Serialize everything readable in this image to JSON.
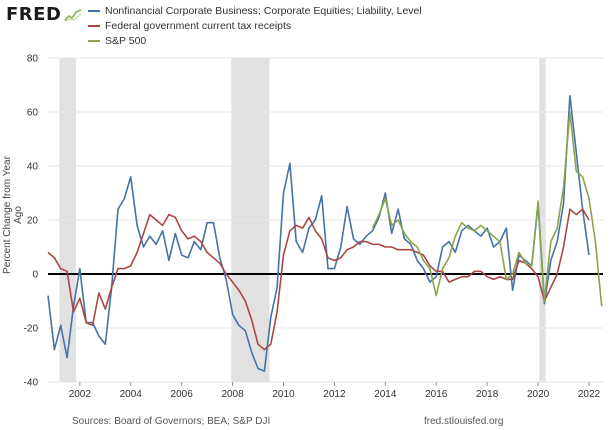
{
  "header": {
    "logo_text": "FRED",
    "logo_icon": "fred-chart-icon"
  },
  "chart_data": {
    "type": "line",
    "title": "",
    "xlabel": "",
    "ylabel": "Percent Change from Year Ago",
    "xlim": [
      2000.75,
      2022.55
    ],
    "ylim": [
      -40,
      80
    ],
    "y_ticks": [
      -40,
      -20,
      0,
      20,
      40,
      60,
      80
    ],
    "x_ticks": [
      2002,
      2004,
      2006,
      2008,
      2010,
      2012,
      2014,
      2016,
      2018,
      2020,
      2022
    ],
    "grid": true,
    "zero_line": true,
    "legend_position": "top-left",
    "recession_bands": [
      [
        2001.2,
        2001.85
      ],
      [
        2007.95,
        2009.45
      ],
      [
        2020.05,
        2020.3
      ]
    ],
    "colors": {
      "grid": "#e6e6e6",
      "recession": "#e1e1e1",
      "axis_text": "#333333",
      "zero_line": "#000000"
    },
    "series": [
      {
        "name": "Nonfinancial Corporate Business; Corporate Equities; Liability, Level",
        "color": "#4572a7",
        "x": [
          2000.75,
          2001.0,
          2001.25,
          2001.5,
          2001.75,
          2002.0,
          2002.25,
          2002.5,
          2002.75,
          2003.0,
          2003.25,
          2003.5,
          2003.75,
          2004.0,
          2004.25,
          2004.5,
          2004.75,
          2005.0,
          2005.25,
          2005.5,
          2005.75,
          2006.0,
          2006.25,
          2006.5,
          2006.75,
          2007.0,
          2007.25,
          2007.5,
          2007.75,
          2008.0,
          2008.25,
          2008.5,
          2008.75,
          2009.0,
          2009.25,
          2009.5,
          2009.75,
          2010.0,
          2010.25,
          2010.5,
          2010.75,
          2011.0,
          2011.25,
          2011.5,
          2011.75,
          2012.0,
          2012.25,
          2012.5,
          2012.75,
          2013.0,
          2013.25,
          2013.5,
          2013.75,
          2014.0,
          2014.25,
          2014.5,
          2014.75,
          2015.0,
          2015.25,
          2015.5,
          2015.75,
          2016.0,
          2016.25,
          2016.5,
          2016.75,
          2017.0,
          2017.25,
          2017.5,
          2017.75,
          2018.0,
          2018.25,
          2018.5,
          2018.75,
          2019.0,
          2019.25,
          2019.5,
          2019.75,
          2020.0,
          2020.25,
          2020.5,
          2020.75,
          2021.0,
          2021.25,
          2021.5,
          2021.75,
          2022.0
        ],
        "values": [
          -8,
          -28,
          -19,
          -31,
          -12,
          2,
          -18,
          -18,
          -23,
          -26,
          -5,
          24,
          28,
          36,
          18,
          10,
          14,
          11,
          16,
          5,
          15,
          7,
          6,
          12,
          9,
          19,
          19,
          6,
          -2,
          -15,
          -19,
          -21,
          -29,
          -35,
          -36,
          -16,
          -5,
          30,
          41,
          12,
          8,
          17,
          20,
          29,
          2,
          2,
          10,
          25,
          13,
          11,
          14,
          16,
          21,
          30,
          15,
          24,
          13,
          11,
          5,
          2,
          -3,
          -1,
          10,
          12,
          8,
          16,
          18,
          16,
          14,
          17,
          10,
          12,
          17,
          -6,
          7,
          5,
          3,
          26,
          -11,
          5,
          12,
          26,
          66,
          45,
          24,
          7
        ]
      },
      {
        "name": "Federal government current tax receipts",
        "color": "#aa4643",
        "x": [
          2000.75,
          2001.0,
          2001.25,
          2001.5,
          2001.75,
          2002.0,
          2002.25,
          2002.5,
          2002.75,
          2003.0,
          2003.25,
          2003.5,
          2003.75,
          2004.0,
          2004.25,
          2004.5,
          2004.75,
          2005.0,
          2005.25,
          2005.5,
          2005.75,
          2006.0,
          2006.25,
          2006.5,
          2006.75,
          2007.0,
          2007.25,
          2007.5,
          2007.75,
          2008.0,
          2008.25,
          2008.5,
          2008.75,
          2009.0,
          2009.25,
          2009.5,
          2009.75,
          2010.0,
          2010.25,
          2010.5,
          2010.75,
          2011.0,
          2011.25,
          2011.5,
          2011.75,
          2012.0,
          2012.25,
          2012.5,
          2012.75,
          2013.0,
          2013.25,
          2013.5,
          2013.75,
          2014.0,
          2014.25,
          2014.5,
          2014.75,
          2015.0,
          2015.25,
          2015.5,
          2015.75,
          2016.0,
          2016.25,
          2016.5,
          2016.75,
          2017.0,
          2017.25,
          2017.5,
          2017.75,
          2018.0,
          2018.25,
          2018.5,
          2018.75,
          2019.0,
          2019.25,
          2019.5,
          2019.75,
          2020.0,
          2020.25,
          2020.5,
          2020.75,
          2021.0,
          2021.25,
          2021.5,
          2021.75,
          2022.0
        ],
        "values": [
          8,
          6,
          2,
          1,
          -14,
          -9,
          -18,
          -19,
          -7,
          -13,
          -5,
          2,
          2,
          3,
          8,
          15,
          22,
          20,
          18,
          22,
          21,
          16,
          13,
          14,
          12,
          8,
          6,
          4,
          0,
          -3,
          -6,
          -10,
          -17,
          -26,
          -28,
          -26,
          -14,
          7,
          16,
          18,
          17,
          21,
          16,
          13,
          6,
          5,
          6,
          9,
          10,
          12,
          12,
          11,
          11,
          10,
          10,
          9,
          9,
          9,
          8,
          7,
          3,
          1,
          1,
          -3,
          -2,
          -1,
          -1,
          1,
          1,
          -1,
          -2,
          -1,
          -2,
          -2,
          5,
          4,
          2,
          -1,
          -10,
          -5,
          0,
          10,
          24,
          22,
          24,
          20
        ]
      },
      {
        "name": "S&P 500",
        "color": "#89a54e",
        "x": [
          2013.5,
          2013.75,
          2014.0,
          2014.25,
          2014.5,
          2014.75,
          2015.0,
          2015.25,
          2015.5,
          2015.75,
          2016.0,
          2016.25,
          2016.5,
          2016.75,
          2017.0,
          2017.25,
          2017.5,
          2017.75,
          2018.0,
          2018.25,
          2018.5,
          2018.75,
          2019.0,
          2019.25,
          2019.5,
          2019.75,
          2020.0,
          2020.25,
          2020.5,
          2020.75,
          2021.0,
          2021.25,
          2021.5,
          2021.75,
          2022.0,
          2022.25,
          2022.5
        ],
        "values": [
          17,
          22,
          28,
          18,
          20,
          15,
          12,
          10,
          5,
          2,
          -8,
          2,
          6,
          14,
          19,
          17,
          16,
          18,
          16,
          14,
          12,
          -2,
          0,
          8,
          4,
          3,
          27,
          -10,
          12,
          17,
          32,
          60,
          38,
          36,
          28,
          12,
          -12
        ]
      }
    ]
  },
  "footer": {
    "sources": "Sources: Board of Governors; BEA; S&P DJI",
    "url": "fred.stlouisfed.org"
  }
}
